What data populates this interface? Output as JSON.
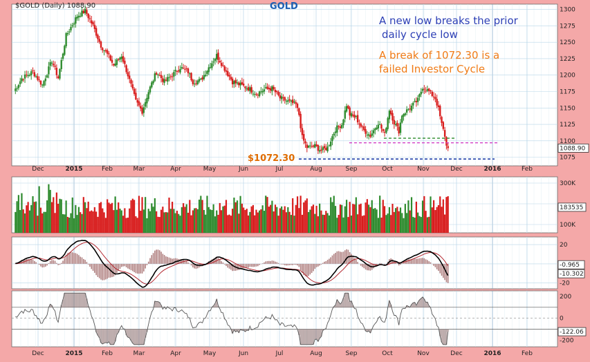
{
  "header": {
    "symbol_text": "$GOLD (Daily) 1088.90",
    "name": "GOLD"
  },
  "annotations": {
    "blue_line1": "A new low breaks the prior",
    "blue_line2": "daily cycle low",
    "orange_line1": "A break of 1072.30 is a",
    "orange_line2": "failed Investor Cycle",
    "low_label": "$1072.30"
  },
  "chart_data": [
    {
      "type": "candlestick",
      "panel": "price",
      "ylim": [
        1062,
        1308
      ],
      "yticks": [
        1075,
        1100,
        1125,
        1150,
        1175,
        1200,
        1225,
        1250,
        1275,
        1300
      ],
      "last_value_label": "1088.90",
      "x_month_labels": [
        "Dec",
        "2015",
        "Feb",
        "Mar",
        "Apr",
        "May",
        "Jun",
        "Jul",
        "Aug",
        "Sep",
        "Oct",
        "Nov",
        "Dec",
        "2016",
        "Feb"
      ],
      "close_anchors": [
        [
          0,
          1175
        ],
        [
          5,
          1195
        ],
        [
          12,
          1205
        ],
        [
          18,
          1185
        ],
        [
          24,
          1222
        ],
        [
          28,
          1196
        ],
        [
          33,
          1260
        ],
        [
          40,
          1290
        ],
        [
          45,
          1298
        ],
        [
          50,
          1275
        ],
        [
          55,
          1245
        ],
        [
          60,
          1228
        ],
        [
          63,
          1215
        ],
        [
          68,
          1230
        ],
        [
          72,
          1200
        ],
        [
          77,
          1160
        ],
        [
          81,
          1145
        ],
        [
          85,
          1175
        ],
        [
          90,
          1205
        ],
        [
          95,
          1190
        ],
        [
          100,
          1200
        ],
        [
          105,
          1212
        ],
        [
          110,
          1205
        ],
        [
          113,
          1190
        ],
        [
          118,
          1192
        ],
        [
          123,
          1212
        ],
        [
          128,
          1230
        ],
        [
          133,
          1210
        ],
        [
          138,
          1190
        ],
        [
          143,
          1185
        ],
        [
          148,
          1180
        ],
        [
          153,
          1172
        ],
        [
          158,
          1178
        ],
        [
          163,
          1180
        ],
        [
          168,
          1165
        ],
        [
          173,
          1160
        ],
        [
          178,
          1155
        ],
        [
          180,
          1140
        ],
        [
          182,
          1105
        ],
        [
          185,
          1090
        ],
        [
          190,
          1092
        ],
        [
          194,
          1085
        ],
        [
          198,
          1090
        ],
        [
          203,
          1118
        ],
        [
          207,
          1125
        ],
        [
          210,
          1155
        ],
        [
          212,
          1140
        ],
        [
          216,
          1135
        ],
        [
          220,
          1118
        ],
        [
          225,
          1108
        ],
        [
          230,
          1128
        ],
        [
          234,
          1110
        ],
        [
          237,
          1148
        ],
        [
          240,
          1128
        ],
        [
          243,
          1115
        ],
        [
          245,
          1140
        ],
        [
          250,
          1150
        ],
        [
          255,
          1162
        ],
        [
          258,
          1182
        ],
        [
          262,
          1175
        ],
        [
          266,
          1165
        ],
        [
          268,
          1148
        ],
        [
          270,
          1125
        ],
        [
          272,
          1108
        ],
        [
          273,
          1092
        ],
        [
          274,
          1088.9
        ]
      ],
      "reference_lines": [
        {
          "value": 1072.3,
          "color": "#1f3fa8",
          "style": "dashed"
        },
        {
          "value": 1097,
          "color": "#d23fc6",
          "style": "dashed"
        },
        {
          "value": 1104,
          "color": "#2a8a2a",
          "style": "dashed"
        }
      ]
    },
    {
      "type": "bar",
      "panel": "volume",
      "ylim": [
        60000,
        330000
      ],
      "yticks": [
        100000,
        200000,
        300000
      ],
      "ytick_labels": [
        "100K",
        "",
        "300K"
      ],
      "last_value_label": "183535",
      "colors": {
        "up": "#2e8b2e",
        "down": "#d81c1c"
      }
    },
    {
      "type": "line",
      "panel": "oscillator",
      "ylim": [
        -26,
        28
      ],
      "yticks": [
        -20,
        0,
        20
      ],
      "ytick_labels": [
        "-20",
        "",
        "20"
      ],
      "last_value_labels": [
        "-0.965",
        "-10.302"
      ],
      "series": [
        {
          "color": "#000000"
        },
        {
          "color": "#b3262e"
        }
      ],
      "histogram_color": "#b08080"
    },
    {
      "type": "area",
      "panel": "cci",
      "ylim": [
        -260,
        250
      ],
      "yticks": [
        -200,
        0,
        200
      ],
      "ytick_labels": [
        "-200",
        "0",
        "200"
      ],
      "reference_levels": [
        100,
        -100
      ],
      "last_value_label": "-122.06",
      "area_color": "#8b6f6f"
    }
  ],
  "colors": {
    "background": "#f4a8a8",
    "panel_bg": "#ffffff",
    "grid": "#b7d6e8",
    "up": "#2e8b2e",
    "down": "#d81c1c"
  }
}
